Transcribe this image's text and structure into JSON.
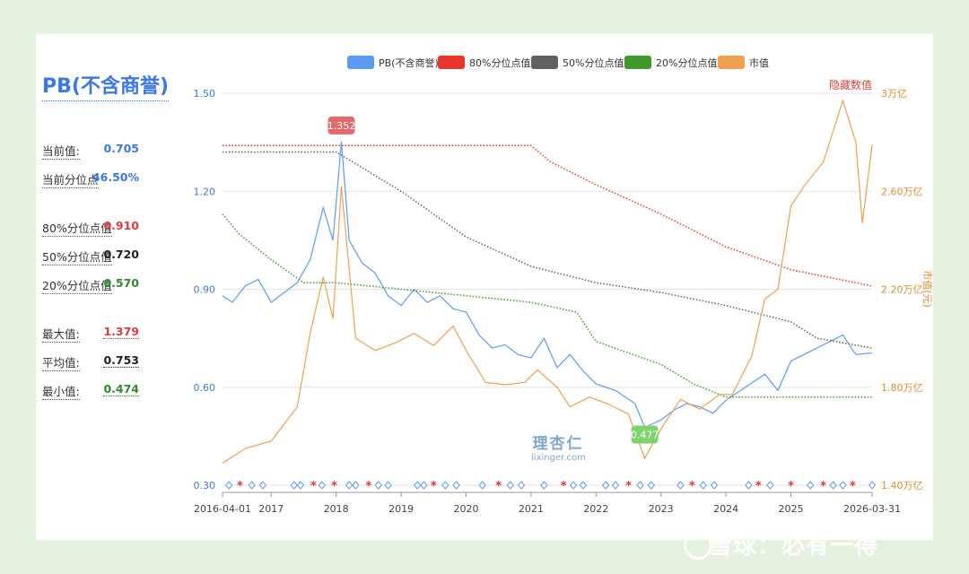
{
  "sidebar": {
    "title": "PB(不含商誉)",
    "rows": [
      {
        "label": "当前值:",
        "value": "0.705",
        "color": "#3b78e7"
      },
      {
        "label": "当前分位点",
        "value": "46.50%",
        "color": "#3b78e7"
      },
      {
        "label": "80%分位点值",
        "value": "0.910",
        "color": "#e03b3b"
      },
      {
        "label": "50%分位点值",
        "value": "0.720",
        "color": "#222222"
      },
      {
        "label": "20%分位点值",
        "value": "0.570",
        "color": "#2e8b2e"
      },
      {
        "label": "最大值:",
        "value": "1.379",
        "color": "#e03b3b"
      },
      {
        "label": "平均值:",
        "value": "0.753",
        "color": "#222222"
      },
      {
        "label": "最小值:",
        "value": "0.474",
        "color": "#2e8b2e"
      }
    ]
  },
  "hide_values_label": "隐藏数值",
  "watermark": {
    "site": "雪球：必有一得",
    "logo_cn": "理杏仁",
    "logo_en": "lixinger.com"
  },
  "chart_data": {
    "type": "line",
    "legend": [
      {
        "name": "PB(不含商誉)",
        "color": "#5b9cf2"
      },
      {
        "name": "80%分位点值",
        "color": "#e8352b"
      },
      {
        "name": "50%分位点值",
        "color": "#606060"
      },
      {
        "name": "20%分位点值",
        "color": "#3f9a2b"
      },
      {
        "name": "市值",
        "color": "#f0a050"
      }
    ],
    "x_ticks": [
      "2016-04-01",
      "2017",
      "2018",
      "2019",
      "2020",
      "2021",
      "2022",
      "2023",
      "2024",
      "2025",
      "2026-03-31"
    ],
    "x_range": [
      2016.25,
      2026.25
    ],
    "y_left_ticks": [
      "0.30",
      "0.60",
      "0.90",
      "1.20",
      "1.50"
    ],
    "y_left_range": [
      0.3,
      1.5
    ],
    "y_right_ticks": [
      "1.40万亿",
      "1.80万亿",
      "2.20万亿",
      "2.60万亿",
      "3万亿"
    ],
    "y_right_range": [
      1.4,
      3.0
    ],
    "y_right_label": "市值(元)",
    "callouts": [
      {
        "text": "1.352",
        "x": 2018.08,
        "y": 1.352,
        "color": "#e36b6b"
      },
      {
        "text": "0.477",
        "x": 2022.75,
        "y": 0.477,
        "color": "#7ed36d"
      }
    ],
    "series": [
      {
        "name": "PB(不含商誉)",
        "axis": "left",
        "color": "#5b9cf2",
        "points": [
          [
            2016.25,
            0.88
          ],
          [
            2016.4,
            0.86
          ],
          [
            2016.6,
            0.91
          ],
          [
            2016.8,
            0.93
          ],
          [
            2017.0,
            0.86
          ],
          [
            2017.2,
            0.89
          ],
          [
            2017.4,
            0.92
          ],
          [
            2017.6,
            0.99
          ],
          [
            2017.8,
            1.15
          ],
          [
            2017.95,
            1.05
          ],
          [
            2018.08,
            1.352
          ],
          [
            2018.2,
            1.05
          ],
          [
            2018.4,
            0.98
          ],
          [
            2018.6,
            0.95
          ],
          [
            2018.8,
            0.88
          ],
          [
            2019.0,
            0.85
          ],
          [
            2019.2,
            0.9
          ],
          [
            2019.4,
            0.86
          ],
          [
            2019.6,
            0.88
          ],
          [
            2019.8,
            0.84
          ],
          [
            2020.0,
            0.83
          ],
          [
            2020.2,
            0.76
          ],
          [
            2020.4,
            0.72
          ],
          [
            2020.6,
            0.73
          ],
          [
            2020.8,
            0.7
          ],
          [
            2021.0,
            0.69
          ],
          [
            2021.2,
            0.75
          ],
          [
            2021.4,
            0.66
          ],
          [
            2021.6,
            0.7
          ],
          [
            2021.8,
            0.65
          ],
          [
            2022.0,
            0.61
          ],
          [
            2022.3,
            0.59
          ],
          [
            2022.6,
            0.55
          ],
          [
            2022.75,
            0.477
          ],
          [
            2023.0,
            0.5
          ],
          [
            2023.2,
            0.53
          ],
          [
            2023.4,
            0.55
          ],
          [
            2023.6,
            0.54
          ],
          [
            2023.8,
            0.52
          ],
          [
            2024.0,
            0.56
          ],
          [
            2024.3,
            0.6
          ],
          [
            2024.6,
            0.64
          ],
          [
            2024.8,
            0.59
          ],
          [
            2025.0,
            0.68
          ],
          [
            2025.2,
            0.7
          ],
          [
            2025.4,
            0.72
          ],
          [
            2025.6,
            0.74
          ],
          [
            2025.8,
            0.76
          ],
          [
            2026.0,
            0.7
          ],
          [
            2026.25,
            0.705
          ]
        ]
      },
      {
        "name": "80%分位点值",
        "axis": "left",
        "color": "#e8352b",
        "points": [
          [
            2016.25,
            1.34
          ],
          [
            2021.0,
            1.34
          ],
          [
            2021.3,
            1.29
          ],
          [
            2022.0,
            1.22
          ],
          [
            2023.0,
            1.13
          ],
          [
            2024.0,
            1.03
          ],
          [
            2025.0,
            0.96
          ],
          [
            2026.25,
            0.91
          ]
        ]
      },
      {
        "name": "50%分位点值",
        "axis": "left",
        "color": "#606060",
        "points": [
          [
            2016.25,
            1.32
          ],
          [
            2018.0,
            1.32
          ],
          [
            2019.0,
            1.2
          ],
          [
            2020.0,
            1.06
          ],
          [
            2021.0,
            0.97
          ],
          [
            2022.0,
            0.92
          ],
          [
            2023.0,
            0.89
          ],
          [
            2024.0,
            0.85
          ],
          [
            2025.0,
            0.8
          ],
          [
            2025.4,
            0.75
          ],
          [
            2026.25,
            0.72
          ]
        ]
      },
      {
        "name": "20%分位点值",
        "axis": "left",
        "color": "#3f9a2b",
        "points": [
          [
            2016.25,
            1.13
          ],
          [
            2016.5,
            1.07
          ],
          [
            2017.0,
            0.99
          ],
          [
            2017.5,
            0.92
          ],
          [
            2018.0,
            0.92
          ],
          [
            2019.0,
            0.9
          ],
          [
            2020.0,
            0.88
          ],
          [
            2021.0,
            0.86
          ],
          [
            2021.7,
            0.83
          ],
          [
            2022.0,
            0.74
          ],
          [
            2023.0,
            0.67
          ],
          [
            2023.5,
            0.61
          ],
          [
            2024.0,
            0.57
          ],
          [
            2026.25,
            0.57
          ]
        ]
      },
      {
        "name": "市值",
        "axis": "right",
        "color": "#f0a050",
        "points": [
          [
            2016.25,
            1.49
          ],
          [
            2016.6,
            1.55
          ],
          [
            2017.0,
            1.58
          ],
          [
            2017.4,
            1.72
          ],
          [
            2017.6,
            2.02
          ],
          [
            2017.8,
            2.25
          ],
          [
            2017.95,
            2.08
          ],
          [
            2018.08,
            2.62
          ],
          [
            2018.3,
            2.0
          ],
          [
            2018.6,
            1.95
          ],
          [
            2018.9,
            1.98
          ],
          [
            2019.2,
            2.02
          ],
          [
            2019.5,
            1.97
          ],
          [
            2019.8,
            2.05
          ],
          [
            2020.0,
            1.95
          ],
          [
            2020.3,
            1.82
          ],
          [
            2020.6,
            1.81
          ],
          [
            2020.9,
            1.82
          ],
          [
            2021.1,
            1.87
          ],
          [
            2021.4,
            1.8
          ],
          [
            2021.6,
            1.72
          ],
          [
            2021.9,
            1.76
          ],
          [
            2022.2,
            1.73
          ],
          [
            2022.5,
            1.69
          ],
          [
            2022.75,
            1.51
          ],
          [
            2023.0,
            1.63
          ],
          [
            2023.3,
            1.75
          ],
          [
            2023.6,
            1.71
          ],
          [
            2023.9,
            1.77
          ],
          [
            2024.1,
            1.77
          ],
          [
            2024.4,
            1.93
          ],
          [
            2024.6,
            2.16
          ],
          [
            2024.8,
            2.2
          ],
          [
            2025.0,
            2.54
          ],
          [
            2025.2,
            2.62
          ],
          [
            2025.5,
            2.72
          ],
          [
            2025.8,
            2.97
          ],
          [
            2026.0,
            2.8
          ],
          [
            2026.1,
            2.47
          ],
          [
            2026.25,
            2.79
          ]
        ]
      }
    ],
    "markers": {
      "star_color": "#e8352b",
      "diamond_color": "#5b9cf2",
      "items": [
        [
          "d",
          2016.35
        ],
        [
          "s",
          2016.52
        ],
        [
          "d",
          2016.7
        ],
        [
          "d",
          2016.87
        ],
        [
          "d",
          2017.35
        ],
        [
          "d",
          2017.45
        ],
        [
          "s",
          2017.65
        ],
        [
          "d",
          2017.78
        ],
        [
          "s",
          2017.97
        ],
        [
          "d",
          2018.2
        ],
        [
          "d",
          2018.3
        ],
        [
          "s",
          2018.5
        ],
        [
          "d",
          2018.65
        ],
        [
          "d",
          2018.8
        ],
        [
          "d",
          2019.25
        ],
        [
          "d",
          2019.35
        ],
        [
          "s",
          2019.5
        ],
        [
          "d",
          2019.68
        ],
        [
          "d",
          2019.85
        ],
        [
          "d",
          2020.25
        ],
        [
          "s",
          2020.5
        ],
        [
          "d",
          2020.68
        ],
        [
          "d",
          2020.85
        ],
        [
          "d",
          2021.2
        ],
        [
          "s",
          2021.5
        ],
        [
          "d",
          2021.65
        ],
        [
          "d",
          2021.8
        ],
        [
          "d",
          2022.15
        ],
        [
          "d",
          2022.3
        ],
        [
          "s",
          2022.5
        ],
        [
          "d",
          2022.68
        ],
        [
          "d",
          2022.85
        ],
        [
          "d",
          2023.3
        ],
        [
          "s",
          2023.48
        ],
        [
          "d",
          2023.65
        ],
        [
          "d",
          2023.82
        ],
        [
          "d",
          2024.35
        ],
        [
          "s",
          2024.5
        ],
        [
          "d",
          2024.68
        ],
        [
          "s",
          2025.0
        ],
        [
          "d",
          2025.3
        ],
        [
          "s",
          2025.5
        ],
        [
          "d",
          2025.65
        ],
        [
          "d",
          2025.8
        ],
        [
          "s",
          2025.95
        ],
        [
          "d",
          2026.25
        ]
      ]
    }
  }
}
